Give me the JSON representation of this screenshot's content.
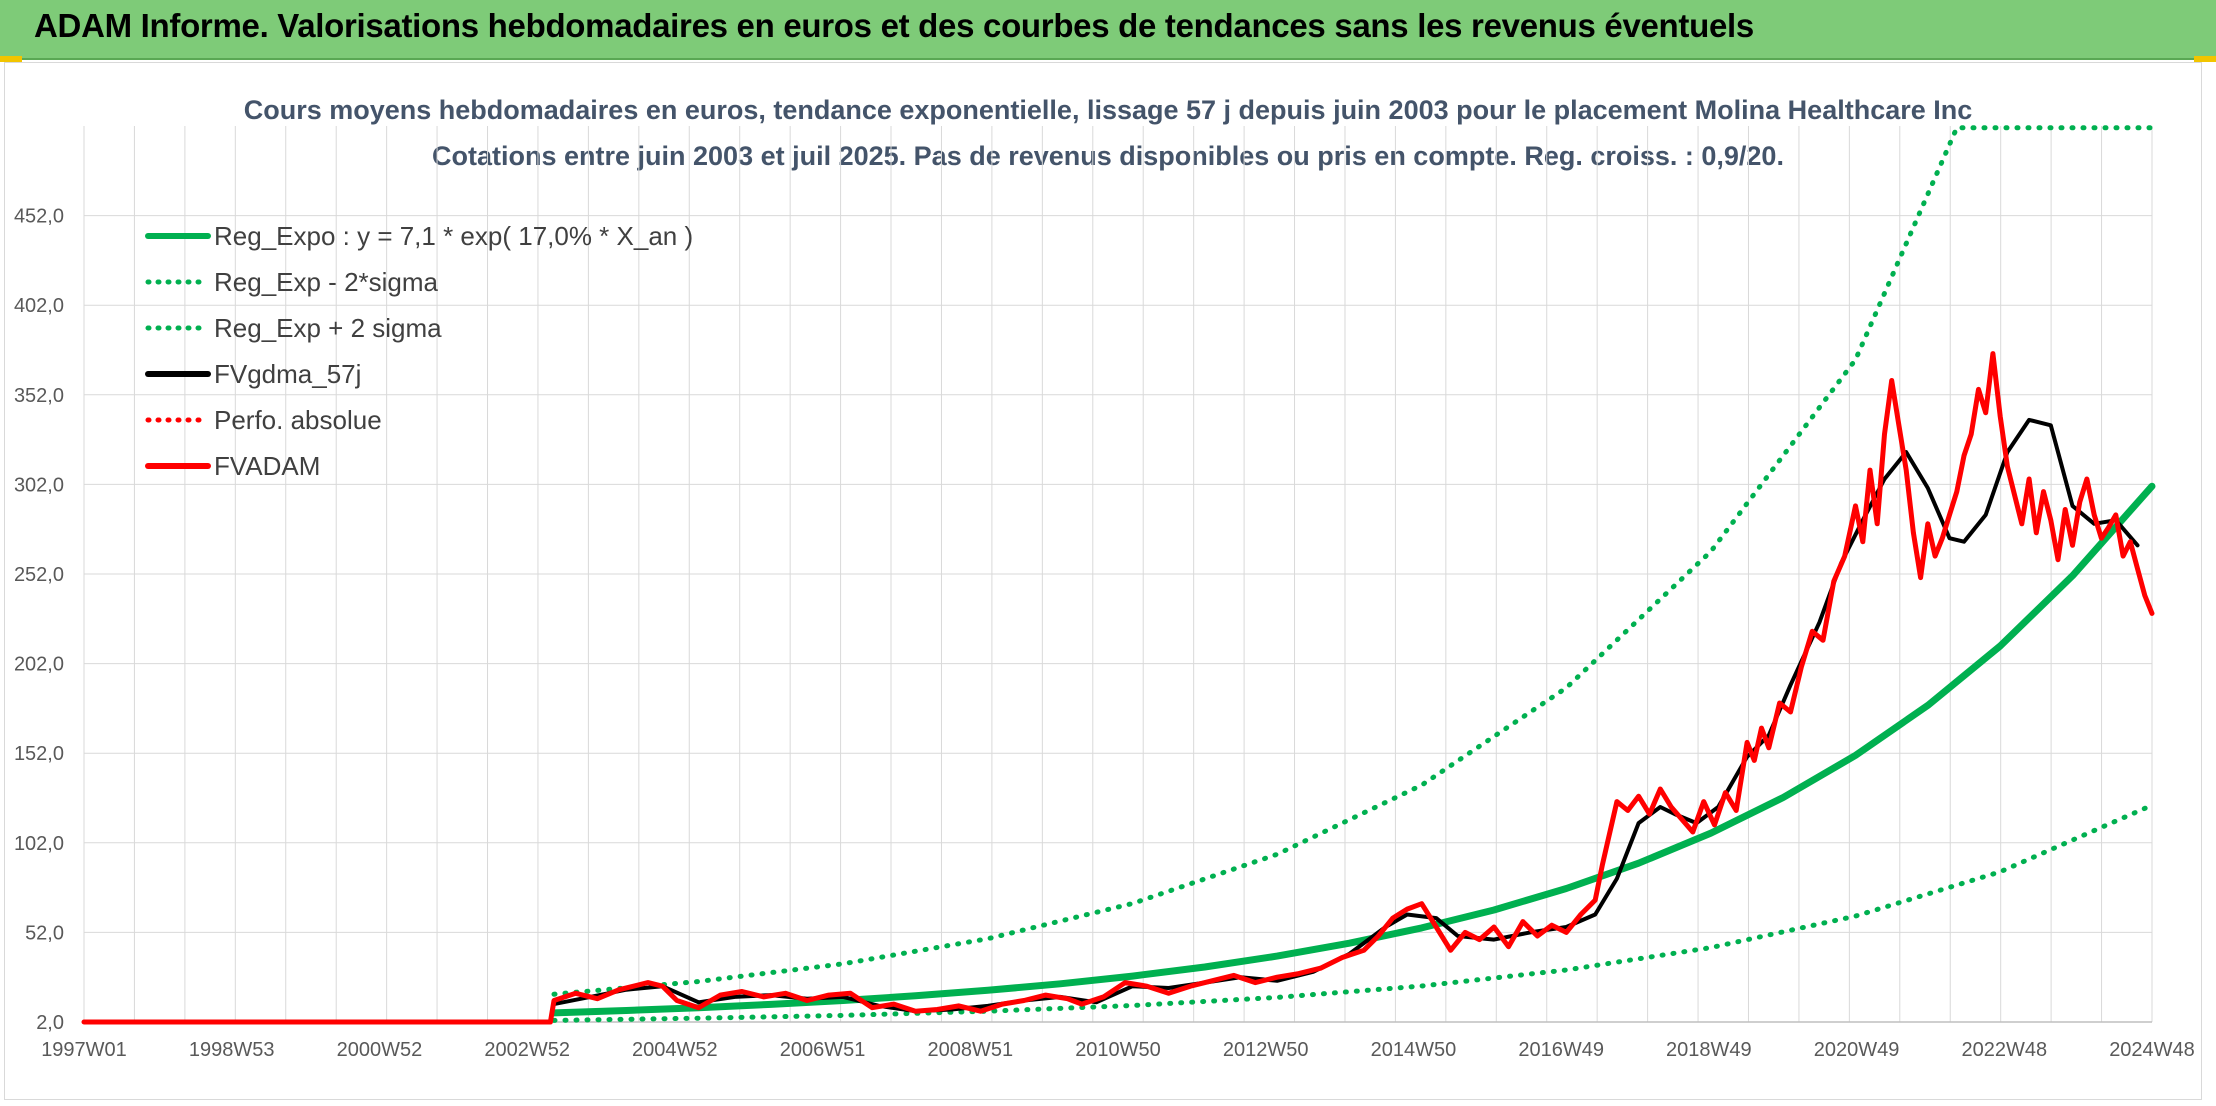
{
  "banner": {
    "title": "ADAM Informe. Valorisations hebdomadaires en euros et des courbes de tendances sans les revenus éventuels"
  },
  "colors": {
    "banner_bg": "#7ecb78",
    "green": "#00b050",
    "red": "#ff0000",
    "black": "#000000",
    "grid": "#d9d9d9"
  },
  "chart_data": {
    "type": "line",
    "title": "Cours moyens hebdomadaires en euros, tendance exponentielle, lissage 57 j depuis juin 2003 pour le placement Molina Healthcare Inc",
    "subtitle": "Cotations entre juin 2003 et juil 2025. Pas de revenus disponibles ou pris en compte. Reg. croiss. : 0,9/20.",
    "x_tick_labels": [
      "1997W01",
      "1998W53",
      "2000W52",
      "2002W52",
      "2004W52",
      "2006W51",
      "2008W51",
      "2010W50",
      "2012W50",
      "2014W50",
      "2016W49",
      "2018W49",
      "2020W49",
      "2022W48",
      "2024W48"
    ],
    "x_range": [
      1997.0,
      2025.6
    ],
    "y_tick_labels": [
      "2,0",
      "52,0",
      "102,0",
      "152,0",
      "202,0",
      "252,0",
      "302,0",
      "352,0",
      "402,0",
      "452,0"
    ],
    "y_ticks": [
      2,
      52,
      102,
      152,
      202,
      252,
      302,
      352,
      402,
      452
    ],
    "ylim": [
      2,
      502
    ],
    "grid": true,
    "legend_position": "top-left",
    "legend": [
      {
        "label": "Reg_Expo : y = 7,1 * exp( 17,0% *  X_an )",
        "color": "#00b050",
        "style": "solid"
      },
      {
        "label": "Reg_Exp - 2*sigma",
        "color": "#00b050",
        "style": "dotted"
      },
      {
        "label": "Reg_Exp + 2 sigma",
        "color": "#00b050",
        "style": "dotted"
      },
      {
        "label": "FVgdma_57j",
        "color": "#000000",
        "style": "solid"
      },
      {
        "label": "Perfo. absolue",
        "color": "#ff0000",
        "style": "dotted"
      },
      {
        "label": "FVADAM",
        "color": "#ff0000",
        "style": "solid"
      }
    ],
    "series": [
      {
        "name": "Reg_Expo : y = 7,1 * exp( 17,0% *  X_an )",
        "x": [
          2003.5,
          2004.5,
          2005.5,
          2006.5,
          2007.5,
          2008.5,
          2009.5,
          2010.5,
          2011.5,
          2012.5,
          2013.5,
          2014.5,
          2015.5,
          2016.5,
          2017.5,
          2018.5,
          2019.5,
          2020.5,
          2021.5,
          2022.5,
          2023.5,
          2024.5,
          2025.6
        ],
        "y": [
          7.1,
          8.4,
          10.0,
          11.8,
          14.0,
          16.6,
          19.7,
          23.3,
          27.6,
          32.7,
          38.8,
          46.0,
          54.5,
          64.5,
          76.5,
          90.6,
          107.4,
          127.3,
          150.8,
          178.7,
          211.8,
          251.0,
          301.0
        ]
      },
      {
        "name": "Reg_Exp - 2*sigma",
        "x": [
          2003.5,
          2005.5,
          2007.5,
          2009.5,
          2011.5,
          2013.5,
          2015.5,
          2017.5,
          2019.5,
          2021.5,
          2023.5,
          2025.6
        ],
        "y": [
          2.9,
          4.1,
          5.7,
          8.0,
          11.2,
          15.7,
          22.1,
          31.0,
          43.5,
          61.1,
          85.8,
          123.0
        ]
      },
      {
        "name": "Reg_Exp + 2 sigma",
        "x": [
          2003.5,
          2005.5,
          2007.5,
          2009.5,
          2011.5,
          2013.5,
          2015.5,
          2017.5,
          2019.5,
          2021.5,
          2022.9,
          2025.6
        ],
        "y": [
          17.5,
          24.6,
          34.5,
          48.5,
          68.1,
          95.6,
          134.2,
          188.5,
          264.6,
          371.6,
          501.0,
          501.0
        ]
      },
      {
        "name": "FVgdma_57j",
        "x": [
          2003.5,
          2004.0,
          2004.5,
          2005.0,
          2005.5,
          2006.0,
          2006.5,
          2007.0,
          2007.5,
          2008.0,
          2008.5,
          2009.0,
          2009.5,
          2010.0,
          2010.5,
          2011.0,
          2011.5,
          2012.0,
          2012.5,
          2013.0,
          2013.5,
          2014.0,
          2014.5,
          2015.0,
          2015.3,
          2015.7,
          2016.0,
          2016.5,
          2017.0,
          2017.5,
          2017.9,
          2018.2,
          2018.5,
          2018.8,
          2019.0,
          2019.3,
          2019.6,
          2020.0,
          2020.3,
          2020.6,
          2021.0,
          2021.3,
          2021.6,
          2021.9,
          2022.2,
          2022.5,
          2022.8,
          2023.0,
          2023.3,
          2023.6,
          2023.9,
          2024.2,
          2024.5,
          2024.8,
          2025.1,
          2025.4
        ],
        "y": [
          12,
          16,
          20,
          22,
          13,
          16,
          17,
          15,
          16,
          11,
          8,
          9,
          11,
          14,
          16,
          13,
          22,
          21,
          24,
          27,
          25,
          30,
          40,
          55,
          62,
          60,
          50,
          48,
          52,
          55,
          62,
          82,
          113,
          122,
          118,
          113,
          122,
          150,
          162,
          190,
          225,
          258,
          282,
          305,
          320,
          300,
          272,
          270,
          285,
          320,
          338,
          335,
          290,
          280,
          282,
          268
        ]
      },
      {
        "name": "FVADAM",
        "x": [
          1997.0,
          2003.45,
          2003.5,
          2003.8,
          2004.1,
          2004.4,
          2004.8,
          2005.0,
          2005.2,
          2005.5,
          2005.8,
          2006.1,
          2006.4,
          2006.7,
          2007.0,
          2007.3,
          2007.6,
          2007.9,
          2008.2,
          2008.5,
          2008.8,
          2009.1,
          2009.4,
          2009.7,
          2010.0,
          2010.3,
          2010.6,
          2010.8,
          2011.1,
          2011.4,
          2011.7,
          2012.0,
          2012.3,
          2012.6,
          2012.9,
          2013.2,
          2013.5,
          2013.8,
          2014.1,
          2014.4,
          2014.7,
          2014.9,
          2015.1,
          2015.3,
          2015.5,
          2015.7,
          2015.9,
          2016.1,
          2016.3,
          2016.5,
          2016.7,
          2016.9,
          2017.1,
          2017.3,
          2017.5,
          2017.7,
          2017.9,
          2018.0,
          2018.2,
          2018.35,
          2018.5,
          2018.65,
          2018.8,
          2018.95,
          2019.1,
          2019.25,
          2019.4,
          2019.55,
          2019.7,
          2019.85,
          2020.0,
          2020.1,
          2020.2,
          2020.3,
          2020.45,
          2020.6,
          2020.75,
          2020.9,
          2021.05,
          2021.2,
          2021.35,
          2021.5,
          2021.6,
          2021.7,
          2021.8,
          2021.9,
          2022.0,
          2022.1,
          2022.2,
          2022.3,
          2022.4,
          2022.5,
          2022.6,
          2022.7,
          2022.8,
          2022.9,
          2023.0,
          2023.1,
          2023.2,
          2023.3,
          2023.4,
          2023.5,
          2023.6,
          2023.7,
          2023.8,
          2023.9,
          2024.0,
          2024.1,
          2024.2,
          2024.3,
          2024.4,
          2024.5,
          2024.6,
          2024.7,
          2024.8,
          2024.9,
          2025.0,
          2025.1,
          2025.2,
          2025.3,
          2025.4,
          2025.5,
          2025.6
        ],
        "y": [
          2,
          2,
          14,
          18,
          15,
          20,
          24,
          22,
          14,
          10,
          17,
          19,
          16,
          18,
          14,
          17,
          18,
          10,
          12,
          8,
          9,
          11,
          8,
          12,
          14,
          17,
          15,
          12,
          16,
          24,
          22,
          18,
          22,
          25,
          28,
          24,
          27,
          29,
          32,
          38,
          42,
          50,
          60,
          65,
          68,
          55,
          42,
          52,
          48,
          55,
          44,
          58,
          50,
          56,
          52,
          62,
          70,
          90,
          125,
          120,
          128,
          118,
          132,
          122,
          115,
          108,
          125,
          112,
          130,
          120,
          158,
          148,
          166,
          155,
          180,
          175,
          200,
          220,
          215,
          248,
          262,
          290,
          270,
          310,
          280,
          330,
          360,
          335,
          310,
          275,
          250,
          280,
          262,
          272,
          285,
          298,
          318,
          330,
          355,
          342,
          375,
          340,
          312,
          296,
          280,
          305,
          275,
          298,
          282,
          260,
          288,
          268,
          292,
          305,
          285,
          272,
          278,
          285,
          262,
          270,
          255,
          240,
          230
        ]
      }
    ]
  }
}
